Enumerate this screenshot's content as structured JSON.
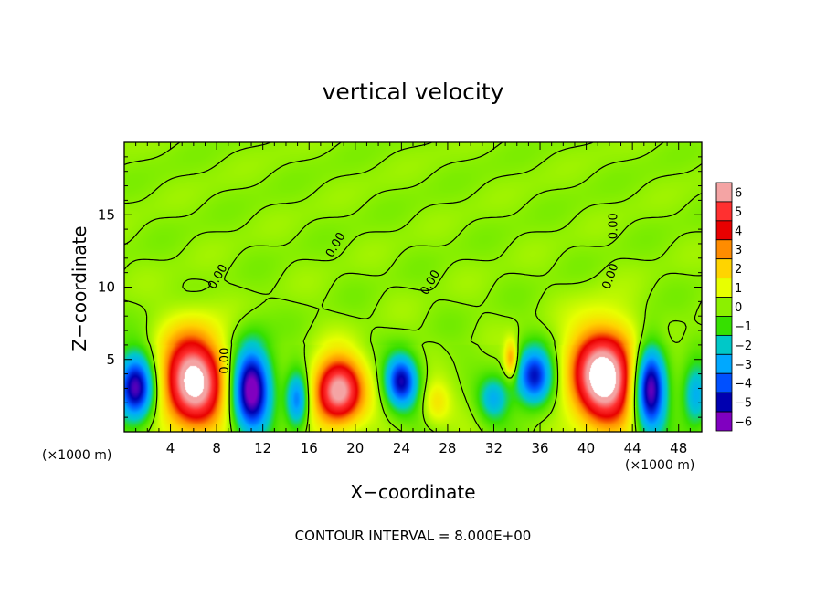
{
  "chart_data": {
    "type": "heatmap",
    "title": "vertical velocity",
    "xlabel": "X−coordinate",
    "ylabel": "Z−coordinate",
    "x_unit": "(×1000 m)",
    "x_unit_right": "(×1000 m)",
    "xlim": [
      0,
      50
    ],
    "ylim": [
      0,
      20
    ],
    "x_ticks": [
      4,
      8,
      12,
      16,
      20,
      24,
      28,
      32,
      36,
      40,
      44,
      48
    ],
    "y_ticks": [
      5,
      10,
      15
    ],
    "colorbar": {
      "levels": [
        6,
        5,
        4,
        3,
        2,
        1,
        0,
        -1,
        -2,
        -3,
        -4,
        -5,
        -6
      ],
      "level_labels": [
        "6",
        "5",
        "4",
        "3",
        "2",
        "1",
        "0",
        "−1",
        "−2",
        "−3",
        "−4",
        "−5",
        "−6"
      ],
      "colors": [
        "#f4a4a4",
        "#ff3030",
        "#e80000",
        "#ff8c00",
        "#ffd400",
        "#e8ff00",
        "#8cf000",
        "#36e000",
        "#00c8c8",
        "#00a8ff",
        "#0050ff",
        "#0000b0",
        "#8000c0"
      ]
    },
    "contour_labels": [
      "0.00",
      "0.00",
      "0.00",
      "0.00",
      "0.00",
      "0.00"
    ],
    "features": [
      {
        "x": 1.0,
        "z": 3.0,
        "w": -6,
        "rx": 1.6,
        "rz": 2.3
      },
      {
        "x": 6.0,
        "z": 3.5,
        "w": 7,
        "rx": 2.8,
        "rz": 3.4
      },
      {
        "x": 11.0,
        "z": 3.0,
        "w": -6.5,
        "rx": 1.7,
        "rz": 3.0
      },
      {
        "x": 15.0,
        "z": 2.2,
        "w": -4,
        "rx": 1.0,
        "rz": 2.0
      },
      {
        "x": 18.5,
        "z": 2.8,
        "w": 6.5,
        "rx": 2.2,
        "rz": 2.4
      },
      {
        "x": 24.0,
        "z": 3.5,
        "w": -5,
        "rx": 1.4,
        "rz": 1.8
      },
      {
        "x": 27.0,
        "z": 2.0,
        "w": 1.5,
        "rx": 1.2,
        "rz": 1.5
      },
      {
        "x": 33.5,
        "z": 5.0,
        "w": 3,
        "rx": 0.6,
        "rz": 1.3
      },
      {
        "x": 32.0,
        "z": 2.3,
        "w": -2.5,
        "rx": 1.3,
        "rz": 1.5
      },
      {
        "x": 35.5,
        "z": 3.8,
        "w": -5,
        "rx": 1.6,
        "rz": 2.0
      },
      {
        "x": 41.5,
        "z": 3.8,
        "w": 7.5,
        "rx": 2.9,
        "rz": 3.4
      },
      {
        "x": 45.5,
        "z": 3.0,
        "w": -6.5,
        "rx": 1.4,
        "rz": 3.0
      },
      {
        "x": 49.5,
        "z": 2.5,
        "w": -3,
        "rx": 1.2,
        "rz": 2.2
      }
    ]
  },
  "footer": "CONTOUR INTERVAL = 8.000E+00"
}
